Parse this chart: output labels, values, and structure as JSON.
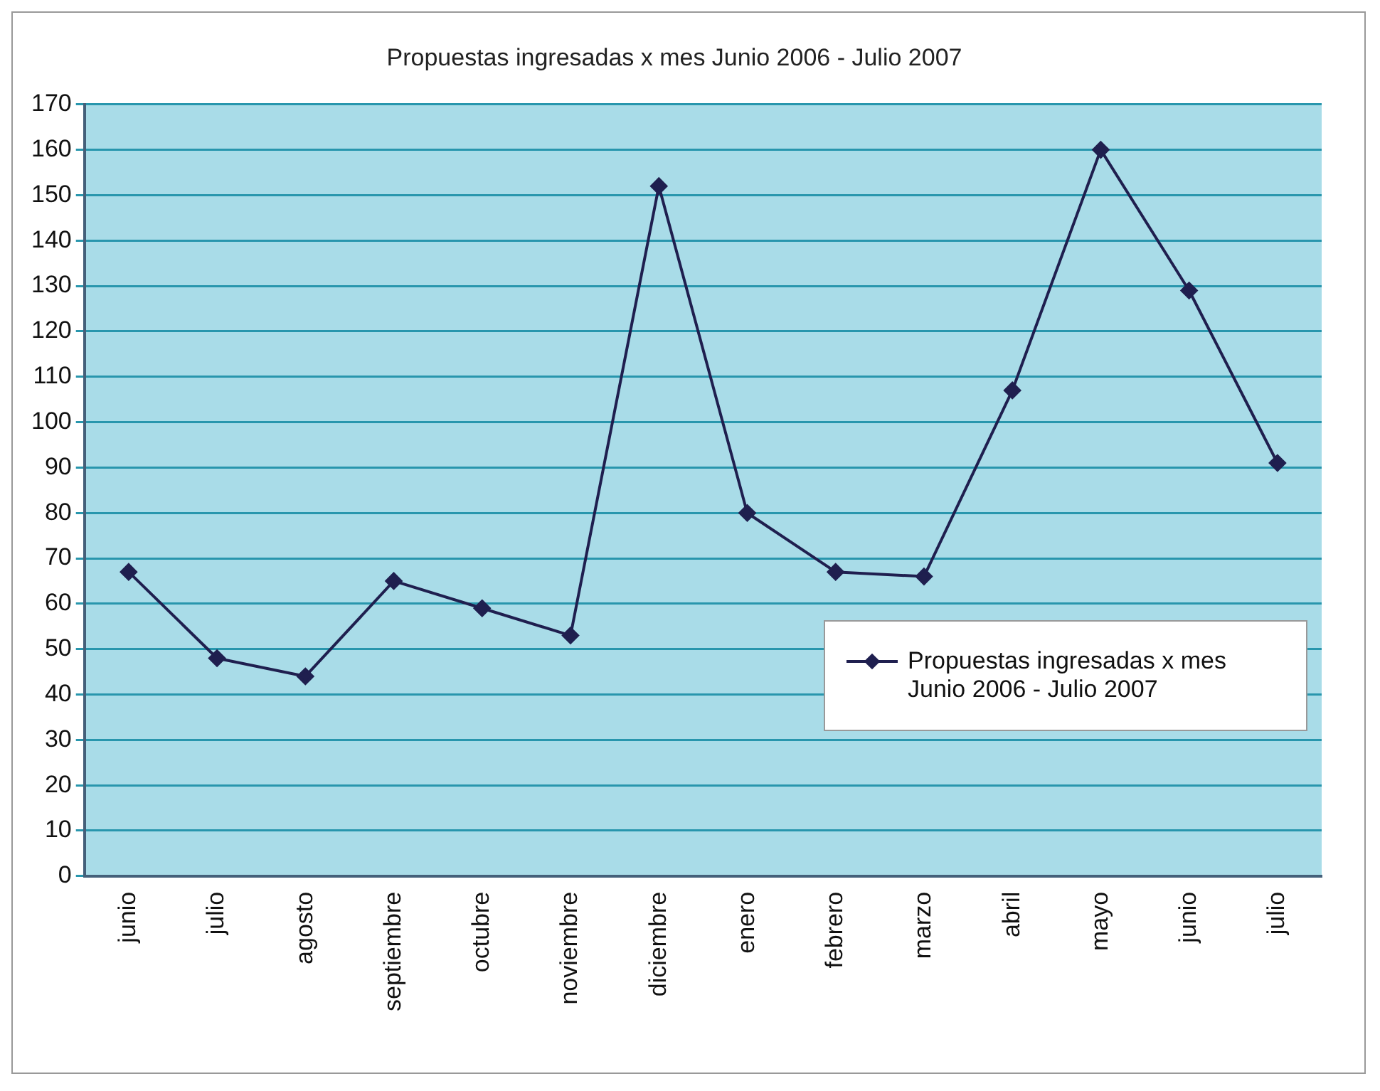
{
  "chart_data": {
    "type": "line",
    "title": "Propuestas ingresadas x mes Junio 2006 - Julio 2007",
    "categories": [
      "junio",
      "julio",
      "agosto",
      "septiembre",
      "octubre",
      "noviembre",
      "diciembre",
      "enero",
      "febrero",
      "marzo",
      "abril",
      "mayo",
      "junio",
      "julio"
    ],
    "series": [
      {
        "name": "Propuestas ingresadas x mes Junio 2006 - Julio 2007",
        "color": "#1f1f4f",
        "values": [
          67,
          48,
          44,
          65,
          59,
          53,
          152,
          80,
          67,
          66,
          107,
          160,
          129,
          91
        ]
      }
    ],
    "ylim": [
      0,
      170
    ],
    "yticks": [
      0,
      10,
      20,
      30,
      40,
      50,
      60,
      70,
      80,
      90,
      100,
      110,
      120,
      130,
      140,
      150,
      160,
      170
    ],
    "grid": "y",
    "legend": "bottom right",
    "marker": "diamond",
    "line_style": "solid"
  }
}
